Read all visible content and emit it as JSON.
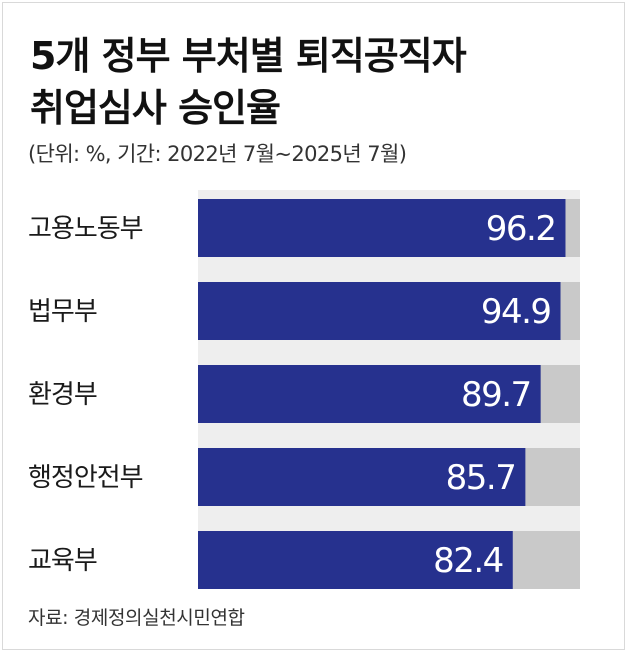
{
  "header": {
    "title_line1": "5개 정부 부처별 퇴직공직자",
    "title_line2": "취업심사 승인율",
    "subtitle": "(단위: %, 기간: 2022년 7월∼2025년 7월)"
  },
  "footer": {
    "source": "자료: 경제정의실천시민연합"
  },
  "colors": {
    "bar": "#26318e",
    "track": "#c9c9c9",
    "band": "#eeeeee",
    "value_text": "#ffffff"
  },
  "chart_data": {
    "type": "bar",
    "orientation": "horizontal",
    "title": "5개 정부 부처별 퇴직공직자 취업심사 승인율",
    "subtitle": "(단위: %, 기간: 2022년 7월∼2025년 7월)",
    "categories": [
      "고용노동부",
      "법무부",
      "환경부",
      "행정안전부",
      "교육부"
    ],
    "values": [
      96.2,
      94.9,
      89.7,
      85.7,
      82.4
    ],
    "value_labels": [
      "96.2",
      "94.9",
      "89.7",
      "85.7",
      "82.4"
    ],
    "xlim": [
      0,
      100
    ],
    "grid": false,
    "legend": "none"
  }
}
